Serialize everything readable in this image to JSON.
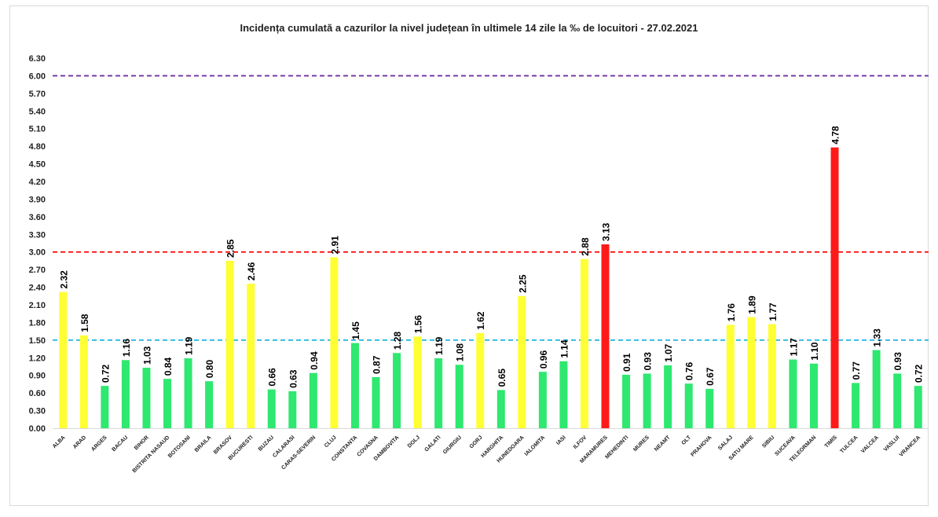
{
  "chart_data": {
    "type": "bar",
    "title": "Incidența cumulată a cazurilor la nivel județean în ultimele 14 zile la ‰ de locuitori - 27.02.2021",
    "xlabel": "",
    "ylabel": "",
    "ylim": [
      0,
      6.3
    ],
    "yticks": [
      "0.00",
      "0.30",
      "0.60",
      "0.90",
      "1.20",
      "1.50",
      "1.80",
      "2.10",
      "2.40",
      "2.70",
      "3.00",
      "3.30",
      "3.60",
      "3.90",
      "4.20",
      "4.50",
      "4.80",
      "5.10",
      "5.40",
      "5.70",
      "6.00",
      "6.30"
    ],
    "grid": false,
    "categories": [
      "ALBA",
      "ARAD",
      "ARGES",
      "BACAU",
      "BIHOR",
      "BISTRITA NASAUD",
      "BOTOSANI",
      "BRAILA",
      "BRASOV",
      "BUCURESTI",
      "BUZAU",
      "CALARASI",
      "CARAS-SEVERIN",
      "CLUJ",
      "CONSTANTA",
      "COVASNA",
      "DAMBOVITA",
      "DOLJ",
      "GALATI",
      "GIURGIU",
      "GORJ",
      "HARGHITA",
      "HUNEDOARA",
      "IALOMITA",
      "IASI",
      "ILFOV",
      "MARAMURES",
      "MEHEDINTI",
      "MURES",
      "NEAMT",
      "OLT",
      "PRAHOVA",
      "SALAJ",
      "SATU MARE",
      "SIBIU",
      "SUCEAVA",
      "TELEORMAN",
      "TIMIS",
      "TULCEA",
      "VALCEA",
      "VASLUI",
      "VRANCEA"
    ],
    "values": [
      2.32,
      1.58,
      0.72,
      1.16,
      1.03,
      0.84,
      1.19,
      0.8,
      2.85,
      2.46,
      0.66,
      0.63,
      0.94,
      2.91,
      1.45,
      0.87,
      1.28,
      1.56,
      1.19,
      1.08,
      1.62,
      0.65,
      2.25,
      0.96,
      1.14,
      2.88,
      3.13,
      0.91,
      0.93,
      1.07,
      0.76,
      0.67,
      1.76,
      1.89,
      1.77,
      1.17,
      1.1,
      4.78,
      0.77,
      1.33,
      0.93,
      0.72
    ],
    "value_labels": [
      "2.32",
      "1.58",
      "0.72",
      "1.16",
      "1.03",
      "0.84",
      "1.19",
      "0.80",
      "2.85",
      "2.46",
      "0.66",
      "0.63",
      "0.94",
      "2.91",
      "1.45",
      "0.87",
      "1.28",
      "1.56",
      "1.19",
      "1.08",
      "1.62",
      "0.65",
      "2.25",
      "0.96",
      "1.14",
      "2.88",
      "3.13",
      "0.91",
      "0.93",
      "1.07",
      "0.76",
      "0.67",
      "1.76",
      "1.89",
      "1.77",
      "1.17",
      "1.10",
      "4.78",
      "0.77",
      "1.33",
      "0.93",
      "0.72"
    ],
    "colors": {
      "green": "#2ee86f",
      "yellow": "#ffff33",
      "red": "#ff1a1a",
      "axis": "#d9d9d9",
      "label": "#000000"
    },
    "thresholds": [
      {
        "value": 6.0,
        "color": "#7030a0"
      },
      {
        "value": 3.0,
        "color": "#ff0000"
      },
      {
        "value": 1.5,
        "color": "#1fb5e0"
      }
    ]
  }
}
